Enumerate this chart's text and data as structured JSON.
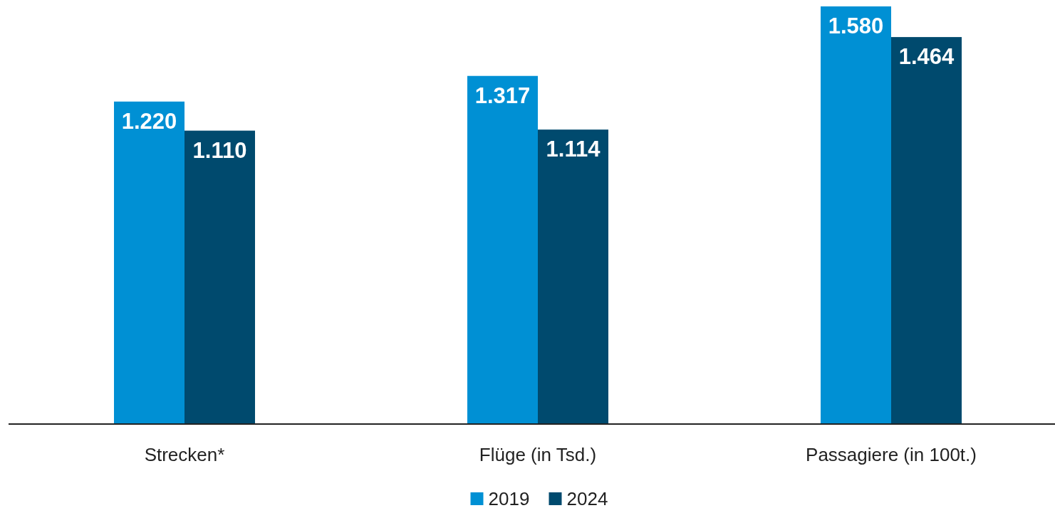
{
  "chart_data": {
    "type": "bar",
    "categories": [
      "Strecken*",
      "Flüge (in Tsd.)",
      "Passagiere (in 100t.)"
    ],
    "series": [
      {
        "name": "2019",
        "color": "#0090d4",
        "values": [
          1220,
          1317,
          1580
        ],
        "value_labels": [
          "1.220",
          "1.317",
          "1.580"
        ]
      },
      {
        "name": "2024",
        "color": "#004a6e",
        "values": [
          1110,
          1114,
          1464
        ],
        "value_labels": [
          "1.110",
          "1.114",
          "1.464"
        ]
      }
    ],
    "legend": "bottom"
  }
}
